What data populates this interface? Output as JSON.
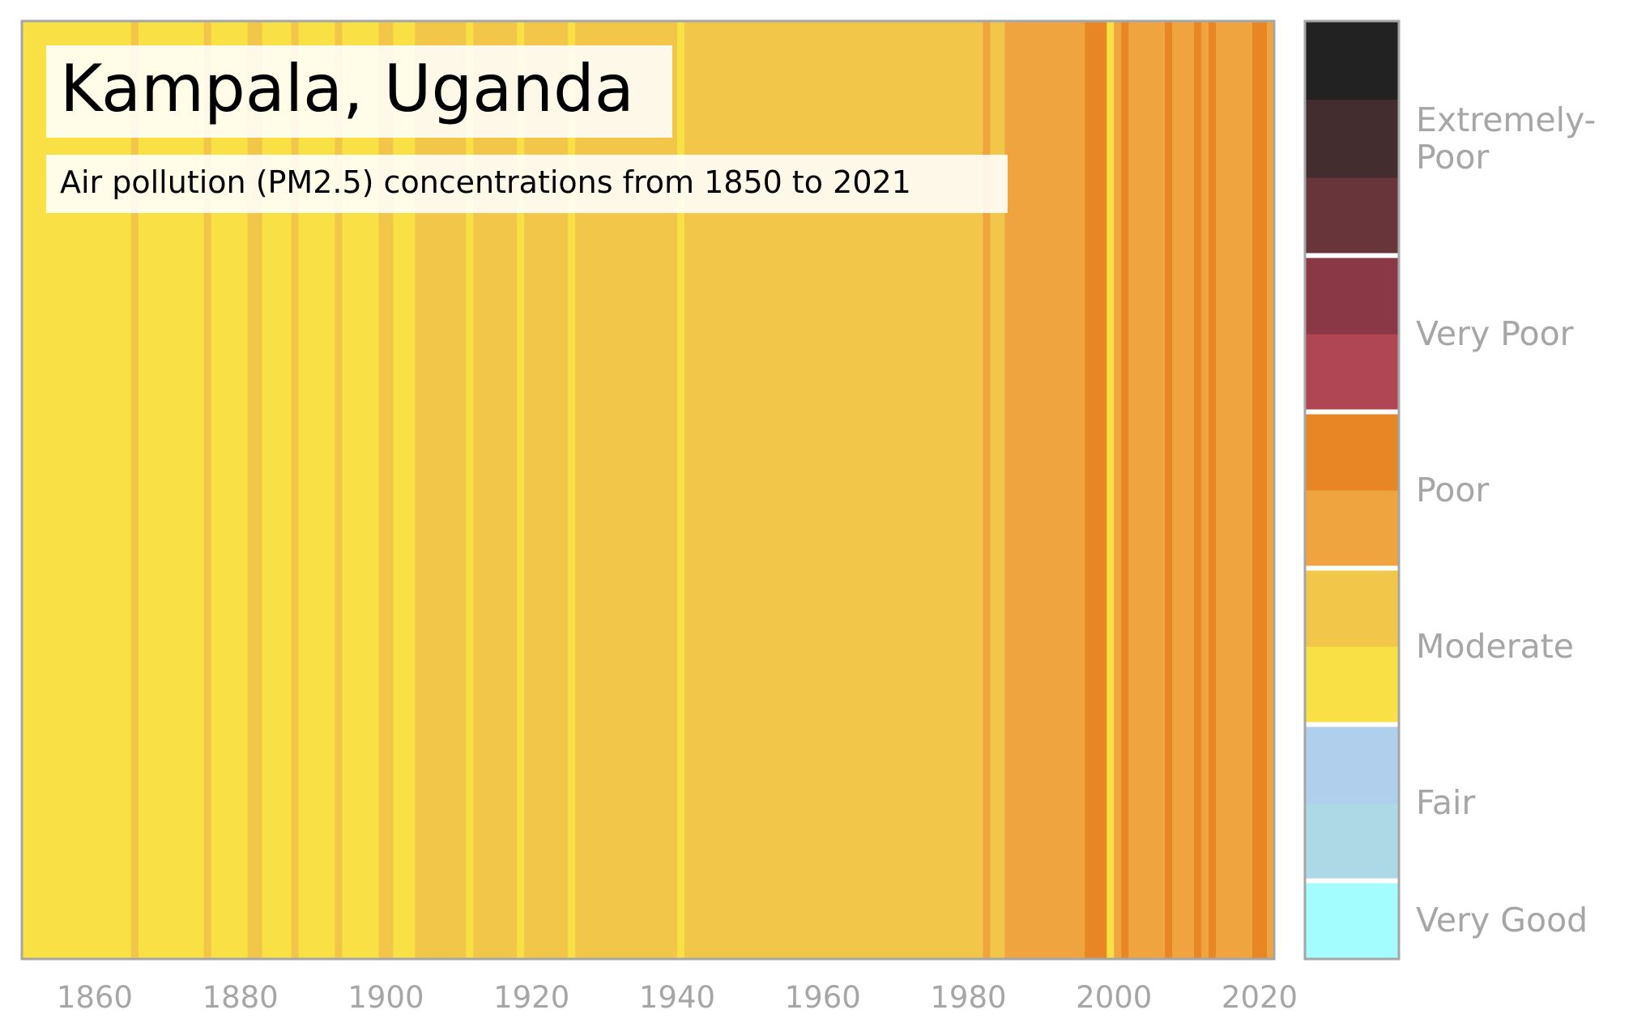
{
  "chart_data": {
    "type": "heatmap",
    "title": "Kampala, Uganda",
    "subtitle": "Air pollution (PM2.5) concentrations from 1850 to 2021",
    "xlabel": "",
    "ylabel": "",
    "xlim": [
      1850,
      2022
    ],
    "x_ticks": [
      1860,
      1880,
      1900,
      1920,
      1940,
      1960,
      1980,
      2000,
      2020
    ],
    "grid": false,
    "legend_position": "right",
    "color_scale": [
      {
        "name": "very-good-1",
        "color": "#a3fdff"
      },
      {
        "name": "fair-1",
        "color": "#add8e6"
      },
      {
        "name": "fair-2",
        "color": "#b0cfec"
      },
      {
        "name": "moderate-1",
        "color": "#f8e045"
      },
      {
        "name": "moderate-2",
        "color": "#f2c649"
      },
      {
        "name": "poor-1",
        "color": "#f0a43f"
      },
      {
        "name": "poor-2",
        "color": "#e88626"
      },
      {
        "name": "very-poor-1",
        "color": "#b04553"
      },
      {
        "name": "very-poor-2",
        "color": "#8a3845"
      },
      {
        "name": "extremely-poor-1",
        "color": "#68363a"
      },
      {
        "name": "extremely-poor-2",
        "color": "#442d2f"
      },
      {
        "name": "extremely-poor-3",
        "color": "#222222"
      }
    ],
    "categories": [
      {
        "label": "Very Good",
        "levels": 1
      },
      {
        "label": "Fair",
        "levels": 2
      },
      {
        "label": "Moderate",
        "levels": 2
      },
      {
        "label": "Poor",
        "levels": 2
      },
      {
        "label": "Very Poor",
        "levels": 2
      },
      {
        "label": "Extremely-\nPoor",
        "levels": 3
      }
    ],
    "series": [
      {
        "start": 1850,
        "end": 1865,
        "level": 3
      },
      {
        "start": 1865,
        "end": 1866,
        "level": 4
      },
      {
        "start": 1866,
        "end": 1875,
        "level": 3
      },
      {
        "start": 1875,
        "end": 1876,
        "level": 4
      },
      {
        "start": 1876,
        "end": 1881,
        "level": 3
      },
      {
        "start": 1881,
        "end": 1883,
        "level": 4
      },
      {
        "start": 1883,
        "end": 1887,
        "level": 3
      },
      {
        "start": 1887,
        "end": 1888,
        "level": 4
      },
      {
        "start": 1888,
        "end": 1893,
        "level": 3
      },
      {
        "start": 1893,
        "end": 1894,
        "level": 4
      },
      {
        "start": 1894,
        "end": 1899,
        "level": 3
      },
      {
        "start": 1899,
        "end": 1901,
        "level": 4
      },
      {
        "start": 1901,
        "end": 1904,
        "level": 3
      },
      {
        "start": 1904,
        "end": 1911,
        "level": 4
      },
      {
        "start": 1911,
        "end": 1912,
        "level": 3
      },
      {
        "start": 1912,
        "end": 1918,
        "level": 4
      },
      {
        "start": 1918,
        "end": 1919,
        "level": 3
      },
      {
        "start": 1919,
        "end": 1925,
        "level": 4
      },
      {
        "start": 1925,
        "end": 1926,
        "level": 3
      },
      {
        "start": 1926,
        "end": 1940,
        "level": 4
      },
      {
        "start": 1940,
        "end": 1941,
        "level": 3
      },
      {
        "start": 1941,
        "end": 1982,
        "level": 4
      },
      {
        "start": 1982,
        "end": 1983,
        "level": 5
      },
      {
        "start": 1983,
        "end": 1985,
        "level": 4
      },
      {
        "start": 1985,
        "end": 1996,
        "level": 5
      },
      {
        "start": 1996,
        "end": 1999,
        "level": 6
      },
      {
        "start": 1999,
        "end": 2000,
        "level": 3
      },
      {
        "start": 2000,
        "end": 2001,
        "level": 5
      },
      {
        "start": 2001,
        "end": 2002,
        "level": 6
      },
      {
        "start": 2002,
        "end": 2007,
        "level": 5
      },
      {
        "start": 2007,
        "end": 2008,
        "level": 6
      },
      {
        "start": 2008,
        "end": 2011,
        "level": 5
      },
      {
        "start": 2011,
        "end": 2012,
        "level": 6
      },
      {
        "start": 2012,
        "end": 2013,
        "level": 5
      },
      {
        "start": 2013,
        "end": 2014,
        "level": 6
      },
      {
        "start": 2014,
        "end": 2019,
        "level": 5
      },
      {
        "start": 2019,
        "end": 2021,
        "level": 6
      },
      {
        "start": 2021,
        "end": 2022,
        "level": 5
      }
    ]
  }
}
